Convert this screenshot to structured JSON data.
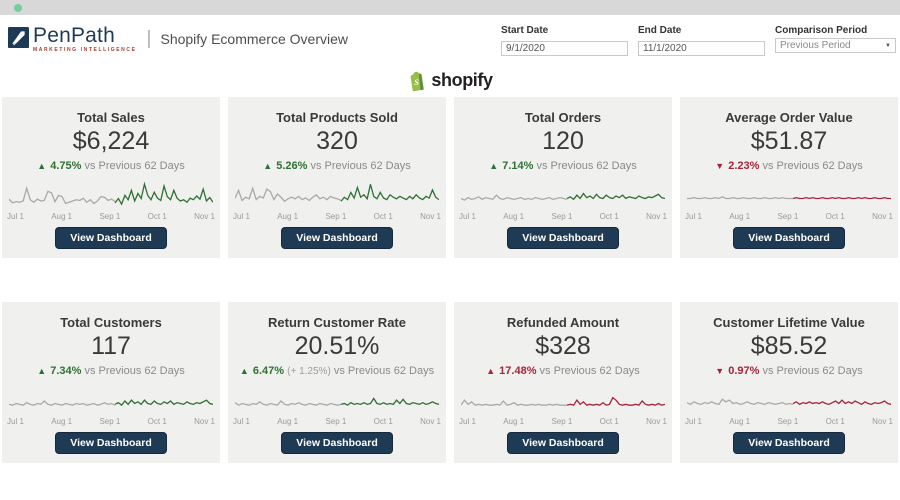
{
  "window": {
    "status_dot": "green"
  },
  "header": {
    "brand": "PenPath",
    "brand_sub": "MARKETING INTELLIGENCE",
    "separator": "|",
    "title": "Shopify Ecommerce Overview",
    "filters": {
      "start_date": {
        "label": "Start Date",
        "value": "9/1/2020"
      },
      "end_date": {
        "label": "End Date",
        "value": "11/1/2020"
      },
      "comparison": {
        "label": "Comparison Period",
        "value": "Previous Period"
      }
    }
  },
  "logo": {
    "wordmark": "shopify"
  },
  "shared": {
    "axis": [
      "Jul 1",
      "Aug 1",
      "Sep 1",
      "Oct 1",
      "Nov 1"
    ],
    "vs_text": "vs Previous 62 Days",
    "view_dashboard": "View Dashboard"
  },
  "colors": {
    "green": "#2f7034",
    "red": "#a5253a",
    "spark_gray": "#a9a9a9",
    "navy": "#1f3a54",
    "shopify_green": "#95BF47",
    "shopify_green_dark": "#5E8E3E",
    "topbar_dot": "#74cf99"
  },
  "chart_data": {
    "type": "line",
    "note": "per-card sparklines stored in cards[].spark; gray=previous 62 days, colored=current 62 days"
  },
  "cards": [
    {
      "title": "Total Sales",
      "value": "$6,224",
      "arrow": "▲",
      "delta": "4.75%",
      "trend": "green",
      "secondary": "",
      "spark": {
        "ymax": 80,
        "prev": [
          30,
          18,
          22,
          20,
          24,
          65,
          28,
          20,
          30,
          24,
          26,
          55,
          50,
          22,
          42,
          38,
          16,
          20,
          24,
          28,
          26,
          33,
          20,
          28,
          16,
          24,
          38,
          36,
          26,
          30,
          22
        ],
        "curr": [
          18,
          32,
          14,
          42,
          28,
          58,
          24,
          48,
          32,
          78,
          42,
          28,
          52,
          33,
          26,
          72,
          38,
          28,
          58,
          33,
          24,
          28,
          20,
          33,
          28,
          40,
          30,
          62,
          24,
          35,
          20
        ]
      }
    },
    {
      "title": "Total Products Sold",
      "value": "320",
      "arrow": "▲",
      "delta": "5.26%",
      "trend": "green",
      "secondary": "",
      "spark": {
        "ymax": 62,
        "prev": [
          25,
          45,
          20,
          28,
          24,
          50,
          22,
          30,
          26,
          48,
          42,
          22,
          36,
          28,
          18,
          24,
          28,
          24,
          30,
          22,
          26,
          20,
          28,
          34,
          24,
          28,
          22,
          30,
          26,
          24,
          20
        ],
        "curr": [
          18,
          28,
          22,
          40,
          26,
          52,
          28,
          34,
          24,
          60,
          30,
          24,
          40,
          26,
          22,
          34,
          28,
          24,
          30,
          26,
          22,
          30,
          24,
          34,
          26,
          22,
          30,
          26,
          46,
          28,
          22
        ]
      }
    },
    {
      "title": "Total Orders",
      "value": "120",
      "arrow": "▲",
      "delta": "7.14%",
      "trend": "green",
      "secondary": "",
      "spark": {
        "ymax": 30,
        "prev": [
          12,
          10,
          13,
          11,
          12,
          14,
          11,
          13,
          12,
          11,
          16,
          12,
          11,
          13,
          12,
          11,
          12,
          13,
          11,
          12,
          11,
          13,
          12,
          11,
          12,
          13,
          11,
          12,
          13,
          12,
          11
        ],
        "curr": [
          12,
          14,
          11,
          16,
          12,
          18,
          13,
          15,
          12,
          17,
          13,
          12,
          16,
          13,
          12,
          15,
          13,
          16,
          12,
          14,
          13,
          12,
          15,
          13,
          12,
          14,
          13,
          15,
          17,
          13,
          12
        ]
      }
    },
    {
      "title": "Average Order Value",
      "value": "$51.87",
      "arrow": "▼",
      "delta": "2.23%",
      "trend": "red",
      "secondary": "",
      "spark": {
        "ymax": 30,
        "prev": [
          12,
          12,
          13,
          12,
          12,
          13,
          12,
          12,
          13,
          12,
          14,
          12,
          12,
          13,
          12,
          12,
          13,
          12,
          12,
          13,
          12,
          12,
          13,
          12,
          12,
          13,
          12,
          13,
          12,
          12,
          12
        ],
        "curr": [
          12,
          13,
          12,
          12,
          13,
          12,
          13,
          12,
          12,
          13,
          12,
          12,
          13,
          12,
          13,
          12,
          12,
          13,
          12,
          12,
          13,
          12,
          13,
          12,
          12,
          13,
          12,
          12,
          13,
          12,
          12
        ]
      }
    },
    {
      "title": "Total Customers",
      "value": "117",
      "arrow": "▲",
      "delta": "7.34%",
      "trend": "green",
      "secondary": "",
      "spark": {
        "ymax": 30,
        "prev": [
          11,
          10,
          12,
          11,
          10,
          13,
          11,
          10,
          12,
          11,
          15,
          11,
          10,
          12,
          11,
          10,
          12,
          11,
          10,
          12,
          11,
          12,
          10,
          11,
          12,
          10,
          11,
          13,
          11,
          12,
          10
        ],
        "curr": [
          11,
          13,
          10,
          15,
          11,
          16,
          12,
          14,
          11,
          16,
          12,
          11,
          15,
          12,
          11,
          14,
          12,
          15,
          11,
          13,
          12,
          11,
          14,
          12,
          11,
          13,
          12,
          14,
          16,
          12,
          11
        ]
      }
    },
    {
      "title": "Return Customer Rate",
      "value": "20.51%",
      "arrow": "▲",
      "delta": "6.47%",
      "trend": "green",
      "secondary": "(+ 1.25%)",
      "spark": {
        "ymax": 30,
        "prev": [
          13,
          10,
          12,
          11,
          10,
          12,
          11,
          14,
          11,
          10,
          12,
          11,
          10,
          15,
          11,
          10,
          12,
          11,
          13,
          11,
          10,
          12,
          11,
          10,
          12,
          11,
          10,
          12,
          11,
          10,
          11
        ],
        "curr": [
          11,
          12,
          10,
          13,
          11,
          12,
          11,
          13,
          11,
          12,
          18,
          12,
          11,
          13,
          11,
          12,
          11,
          16,
          12,
          17,
          12,
          11,
          13,
          12,
          11,
          13,
          11,
          12,
          14,
          12,
          11
        ]
      }
    },
    {
      "title": "Refunded Amount",
      "value": "$328",
      "arrow": "▲",
      "delta": "17.48%",
      "trend": "red",
      "secondary": "",
      "spark": {
        "ymax": 30,
        "prev": [
          10,
          16,
          11,
          14,
          10,
          11,
          10,
          11,
          10,
          10,
          11,
          10,
          15,
          10,
          11,
          13,
          10,
          11,
          10,
          10,
          11,
          10,
          11,
          10,
          10,
          11,
          10,
          11,
          10,
          10,
          10
        ],
        "curr": [
          10,
          11,
          10,
          16,
          11,
          14,
          10,
          11,
          10,
          11,
          10,
          13,
          10,
          11,
          19,
          16,
          11,
          10,
          11,
          10,
          10,
          11,
          10,
          15,
          11,
          10,
          11,
          10,
          12,
          10,
          11
        ]
      }
    },
    {
      "title": "Customer Lifetime Value",
      "value": "$85.52",
      "arrow": "▼",
      "delta": "0.97%",
      "trend": "red",
      "secondary": "",
      "spark": {
        "ymax": 30,
        "prev": [
          13,
          11,
          14,
          12,
          11,
          13,
          12,
          14,
          12,
          11,
          17,
          14,
          16,
          12,
          13,
          11,
          12,
          14,
          12,
          11,
          13,
          12,
          11,
          13,
          12,
          11,
          12,
          13,
          11,
          12,
          11
        ],
        "curr": [
          12,
          14,
          11,
          13,
          12,
          14,
          12,
          13,
          12,
          14,
          12,
          11,
          13,
          15,
          12,
          16,
          12,
          14,
          12,
          15,
          13,
          11,
          14,
          12,
          11,
          13,
          12,
          13,
          15,
          12,
          11
        ]
      }
    }
  ]
}
